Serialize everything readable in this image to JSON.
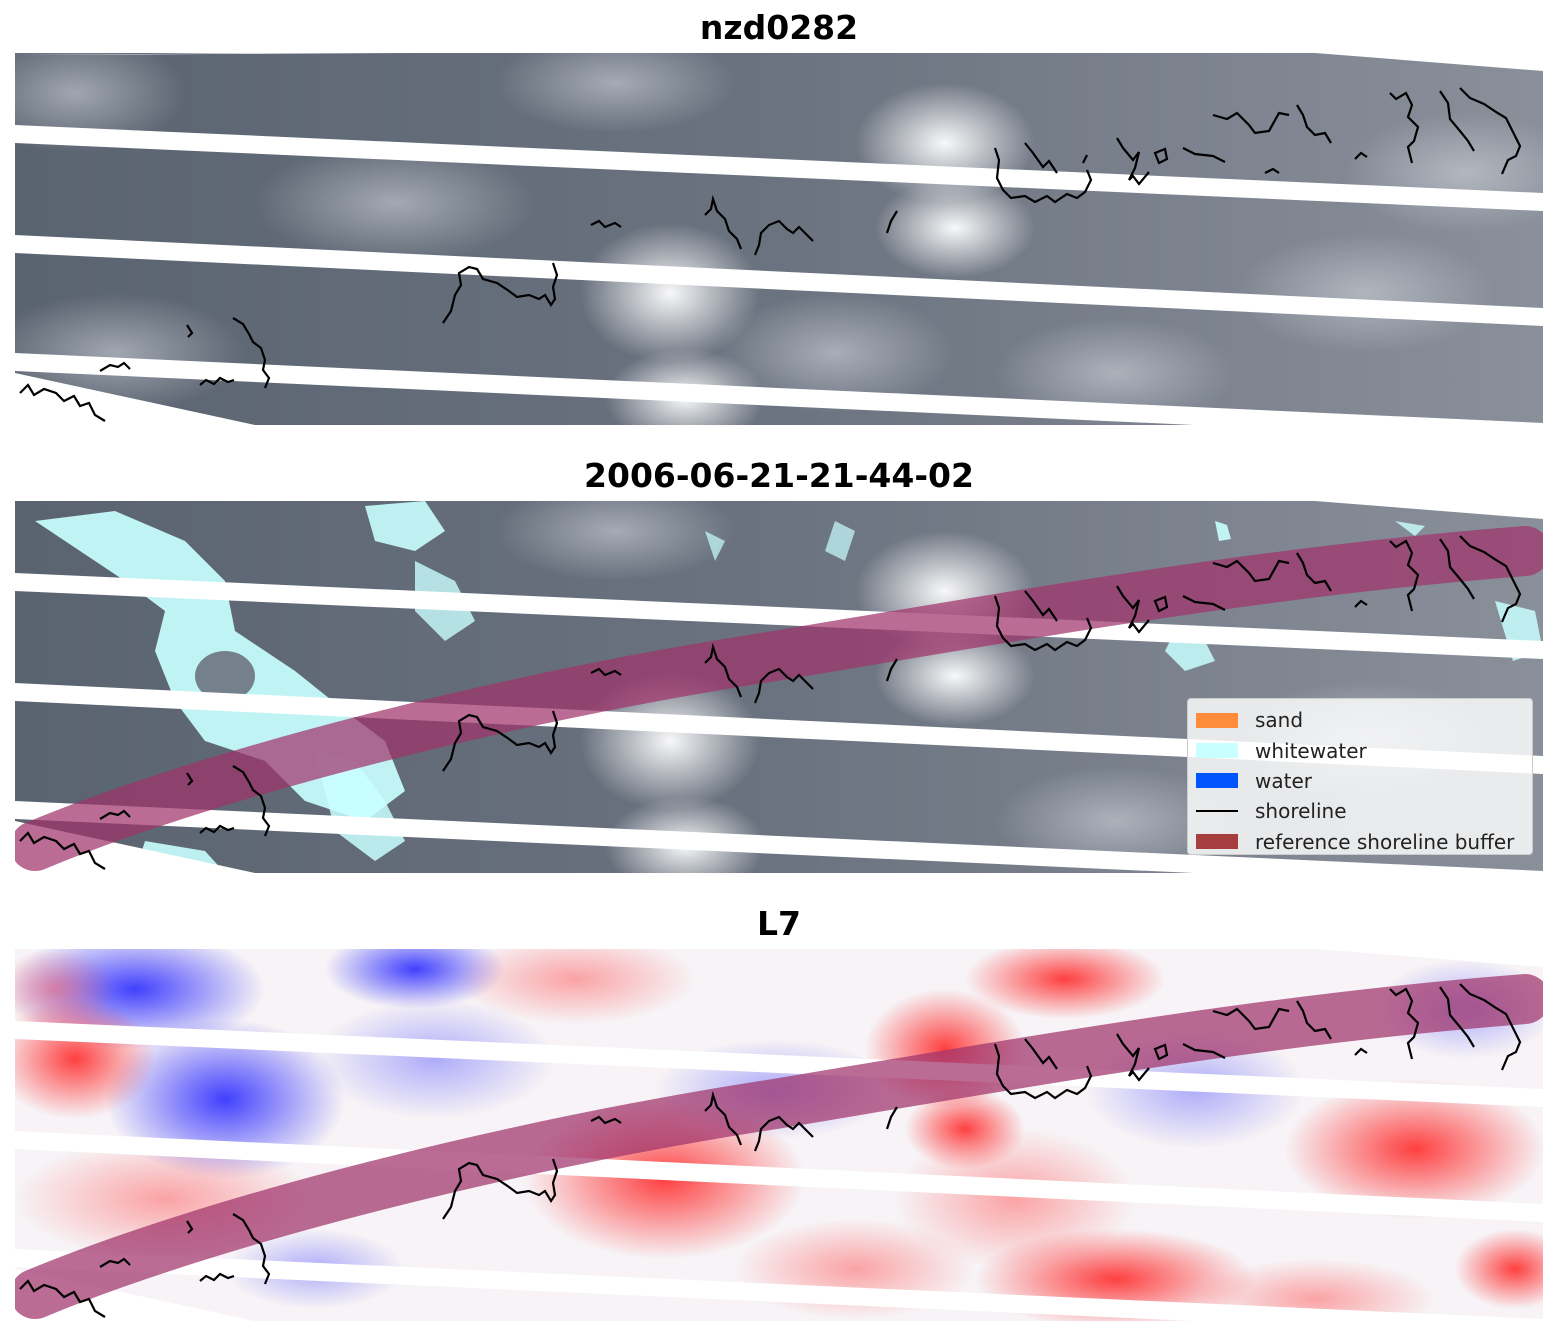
{
  "panels": [
    {
      "title": "nzd0282",
      "kind": "grey",
      "show_buffer": false,
      "show_whitewater": false,
      "show_legend": false
    },
    {
      "title": "2006-06-21-21-44-02",
      "kind": "grey",
      "show_buffer": true,
      "show_whitewater": true,
      "show_legend": true
    },
    {
      "title": "L7",
      "kind": "diverging",
      "show_buffer": true,
      "show_whitewater": false,
      "show_legend": false
    }
  ],
  "legend": {
    "items": [
      {
        "label": "sand",
        "color": "#ff8c3a",
        "type": "patch"
      },
      {
        "label": "whitewater",
        "color": "#c9ffff",
        "type": "patch"
      },
      {
        "label": "water",
        "color": "#0055ff",
        "type": "patch"
      },
      {
        "label": "shoreline",
        "color": "#000000",
        "type": "line"
      },
      {
        "label": "reference shoreline buffer",
        "color": "#9e2a2b",
        "type": "patch"
      }
    ]
  },
  "colors": {
    "grey_dark": "#4b5563",
    "grey_light": "#f3f4f6",
    "buffer": "#a0336b",
    "diverging_red": "#ff2020",
    "diverging_blue": "#2020ff",
    "scanline_gap": "#ffffff"
  }
}
